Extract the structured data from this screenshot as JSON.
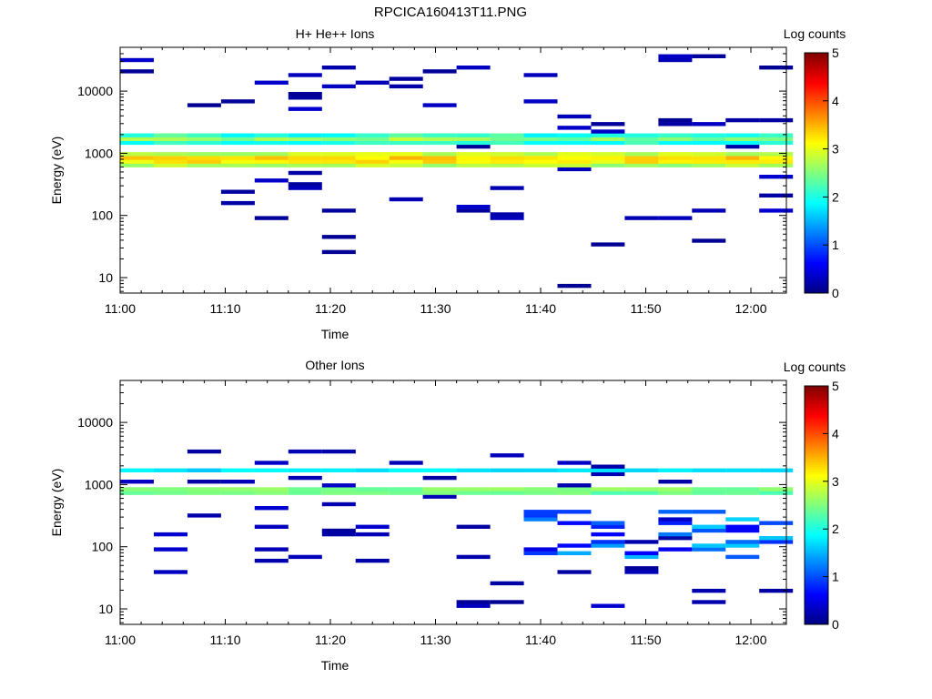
{
  "page_title": "RPCICA160413T11.PNG",
  "chart_data": [
    {
      "type": "heatmap",
      "title": "H+ He++ Ions",
      "xlabel": "Time",
      "ylabel": "Energy (eV)",
      "y_scale": "log",
      "ylim": [
        6,
        45000
      ],
      "x_ticks": [
        "11:00",
        "11:10",
        "11:20",
        "11:30",
        "11:40",
        "11:50",
        "12:00"
      ],
      "y_ticks": [
        "10",
        "100",
        "1000",
        "10000"
      ],
      "colorbar": {
        "label": "Log counts",
        "ticks": [
          "0",
          "1",
          "2",
          "3",
          "4",
          "5"
        ],
        "range": [
          0,
          5
        ]
      },
      "background_grid": false
    },
    {
      "type": "heatmap",
      "title": "Other Ions",
      "xlabel": "Time",
      "ylabel": "Energy (eV)",
      "y_scale": "log",
      "ylim": [
        6,
        45000
      ],
      "x_ticks": [
        "11:00",
        "11:10",
        "11:20",
        "11:30",
        "11:40",
        "11:50",
        "12:00"
      ],
      "y_ticks": [
        "10",
        "100",
        "1000",
        "10000"
      ],
      "colorbar": {
        "label": "Log counts",
        "ticks": [
          "0",
          "1",
          "2",
          "3",
          "4",
          "5"
        ],
        "range": [
          0,
          5
        ]
      },
      "background_grid": false
    }
  ]
}
